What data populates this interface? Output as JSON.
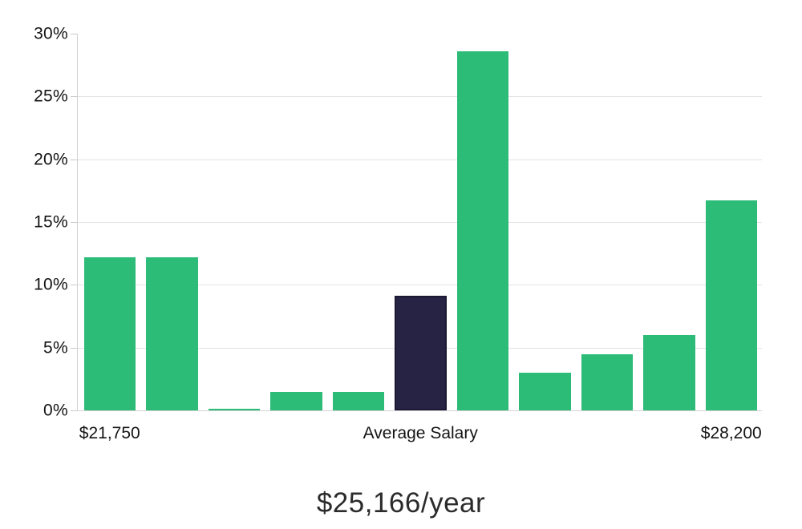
{
  "chart_data": {
    "type": "bar",
    "title": "$25,166/year",
    "xlabel": "",
    "ylabel": "",
    "ylim": [
      0,
      30
    ],
    "grid": true,
    "legend": false,
    "values": [
      12.2,
      12.2,
      0.1,
      1.5,
      1.5,
      9.1,
      28.6,
      3.0,
      4.5,
      6.0,
      16.7
    ],
    "highlight_index": 5,
    "y_ticks": [
      {
        "value": 0,
        "label": "0%"
      },
      {
        "value": 5,
        "label": "5%"
      },
      {
        "value": 10,
        "label": "10%"
      },
      {
        "value": 15,
        "label": "15%"
      },
      {
        "value": 20,
        "label": "20%"
      },
      {
        "value": 25,
        "label": "25%"
      },
      {
        "value": 30,
        "label": "30%"
      }
    ],
    "gridline_values": [
      0,
      5,
      10,
      15,
      20,
      25
    ],
    "x_ticks": [
      {
        "bar_index": 0,
        "label": "$21,750"
      },
      {
        "bar_index": 5,
        "label": "Average Salary"
      },
      {
        "bar_index": 10,
        "label": "$28,200"
      }
    ],
    "colors": {
      "bar": "#2dbc78",
      "highlight_fill": "#272345",
      "highlight_border": "#1b1833",
      "grid": "#e3e3e3",
      "axis": "#d2d2d2",
      "tick_text": "#141414",
      "title_text": "#2b2b2b"
    }
  }
}
